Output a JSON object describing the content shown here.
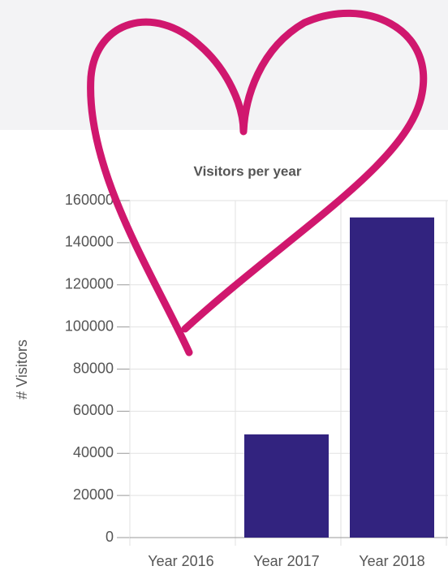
{
  "chart_data": {
    "type": "bar",
    "title": "Visitors per year",
    "y_label": "# Visitors",
    "categories": [
      "Year 2016",
      "Year 2017",
      "Year 2018"
    ],
    "values": [
      0,
      49000,
      152000
    ],
    "color": "#32237f",
    "ylim": [
      0,
      160000
    ],
    "yticks": [
      0,
      20000,
      40000,
      60000,
      80000,
      100000,
      120000,
      140000,
      160000
    ],
    "grid": true
  }
}
